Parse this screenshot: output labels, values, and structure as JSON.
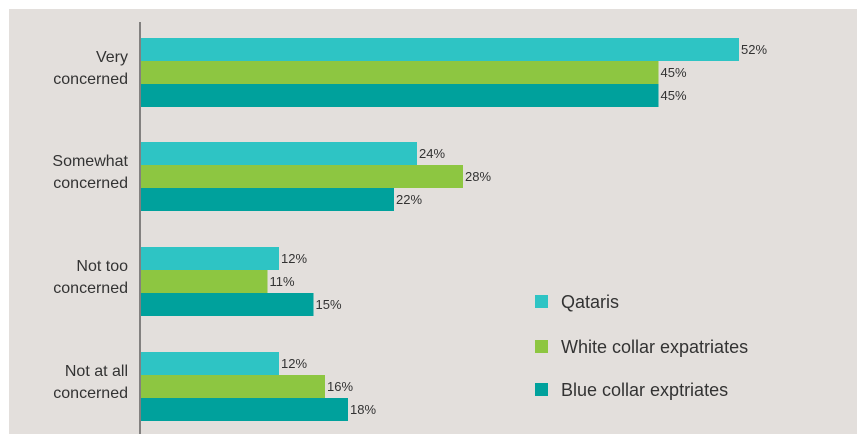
{
  "chart_data": {
    "type": "bar",
    "orientation": "horizontal",
    "categories": [
      [
        "Very",
        "concerned"
      ],
      [
        "Somewhat",
        "concerned"
      ],
      [
        "Not too",
        "concerned"
      ],
      [
        "Not at all",
        "concerned"
      ]
    ],
    "series": [
      {
        "name": "Qataris",
        "color": "#2ec4c4",
        "values": [
          52,
          24,
          12,
          12
        ]
      },
      {
        "name": "White collar expatriates",
        "color": "#8dc641",
        "values": [
          45,
          28,
          11,
          16
        ]
      },
      {
        "name": "Blue collar exptriates",
        "color": "#00a19c",
        "values": [
          45,
          22,
          15,
          18
        ]
      }
    ],
    "value_suffix": "%",
    "xlim": [
      0,
      60
    ],
    "grid": false,
    "legend_position": "bottom-right",
    "background": "#e3dfdc"
  }
}
